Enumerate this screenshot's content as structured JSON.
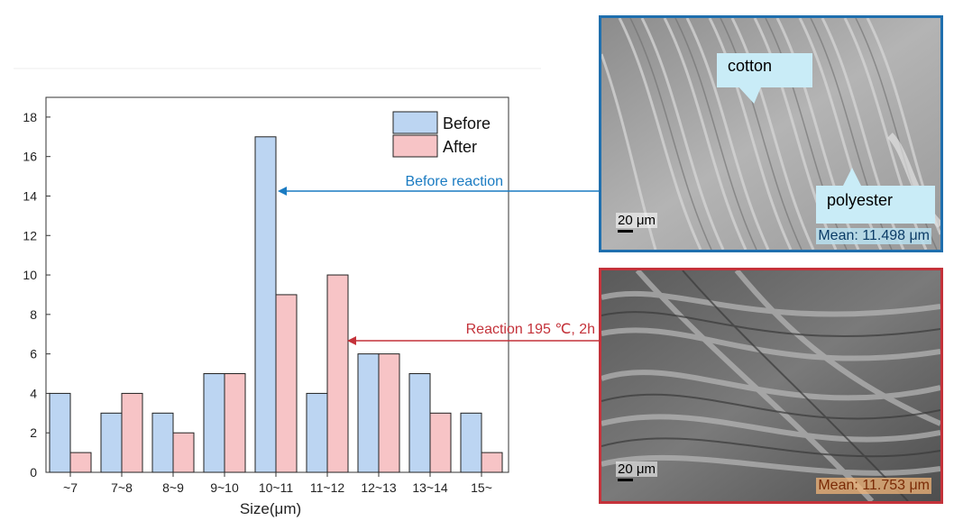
{
  "chart_data": {
    "type": "bar",
    "categories": [
      "~7",
      "7~8",
      "8~9",
      "9~10",
      "10~11",
      "11~12",
      "12~13",
      "13~14",
      "15~"
    ],
    "series": [
      {
        "name": "Before",
        "values": [
          4,
          3,
          3,
          5,
          17,
          4,
          6,
          5,
          3
        ],
        "color": "#bcd5f2"
      },
      {
        "name": "After",
        "values": [
          1,
          4,
          2,
          5,
          9,
          10,
          6,
          3,
          1
        ],
        "color": "#f7c4c6"
      }
    ],
    "xlabel": "Size(μm)",
    "ylabel": "",
    "ylim": [
      0,
      19
    ],
    "yticks": [
      0,
      2,
      4,
      6,
      8,
      10,
      12,
      14,
      16,
      18
    ],
    "grid": false,
    "legend": "top-right"
  },
  "annotations": {
    "before_reaction": "Before reaction",
    "reaction_condition": "Reaction 195 ℃, 2h",
    "before_color": "#1a7bc2",
    "after_color": "#c4323a"
  },
  "sem_top": {
    "callout_cotton": "cotton",
    "callout_polyester": "polyester",
    "scale": "20 μm",
    "mean": "Mean: 11.498 μm"
  },
  "sem_bottom": {
    "scale": "20 μm",
    "mean": "Mean: 11.753 μm"
  }
}
